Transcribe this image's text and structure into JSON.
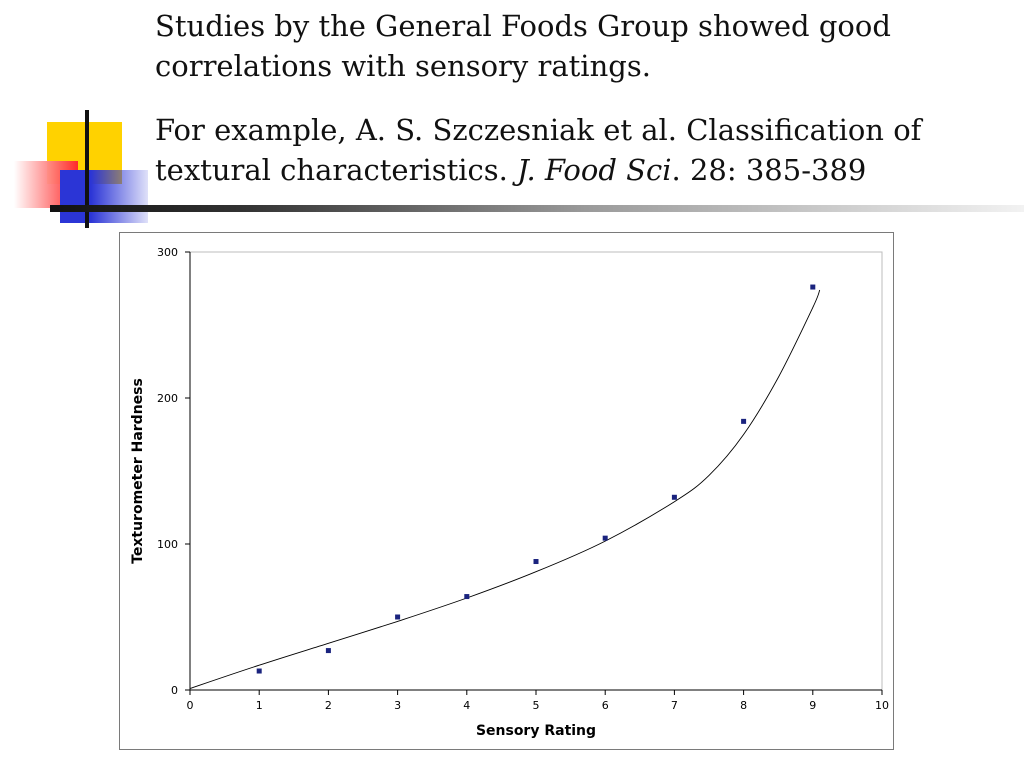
{
  "slide": {
    "para1": "Studies by the General Foods Group showed good correlations with sensory ratings.",
    "para2_main": "For example, A. S. Szczesniak et al.  Classification of textural characteristics.  ",
    "para2_journal": "J. Food Sci",
    "para2_tail": ".  28: 385-389"
  },
  "chart_data": {
    "type": "scatter",
    "title": "",
    "xlabel": "Sensory Rating",
    "ylabel": "Texturometer Hardness",
    "xlim": [
      0,
      10
    ],
    "ylim": [
      0,
      300
    ],
    "x_ticks": [
      0,
      1,
      2,
      3,
      4,
      5,
      6,
      7,
      8,
      9,
      10
    ],
    "y_ticks": [
      0,
      100,
      200,
      300
    ],
    "grid": false,
    "legend": "none",
    "marker_color": "#1a237e",
    "series": [
      {
        "x": [
          1,
          2,
          3,
          4,
          5,
          6,
          7,
          8,
          9
        ],
        "y": [
          13,
          27,
          50,
          64,
          88,
          104,
          132,
          184,
          276
        ]
      }
    ],
    "trendline": {
      "x": [
        0,
        1,
        2,
        3,
        4,
        5,
        6,
        7,
        7.5,
        8,
        8.5,
        9,
        9.1
      ],
      "y": [
        1,
        17,
        32,
        47,
        63,
        81,
        102,
        129,
        147,
        175,
        214,
        262,
        274
      ]
    }
  }
}
